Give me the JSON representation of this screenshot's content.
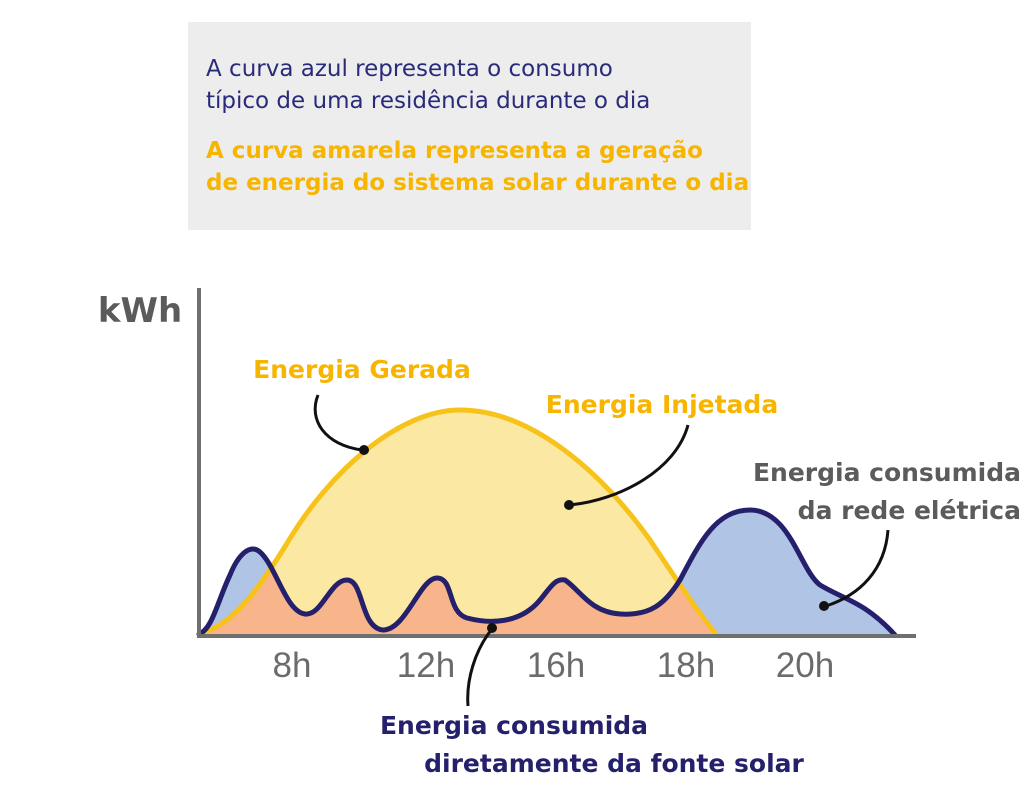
{
  "legend": {
    "blue_lines": [
      "A curva azul representa o consumo",
      "típico de uma residência durante o dia"
    ],
    "yellow_lines": [
      "A curva amarela representa a geração",
      "de energia do sistema solar durante o dia"
    ]
  },
  "chart_data": {
    "type": "area",
    "ylabel": "kWh",
    "xlabel": "",
    "x_ticks": [
      "8h",
      "12h",
      "16h",
      "18h",
      "20h"
    ],
    "series": [
      {
        "name": "Energia Gerada",
        "color": "#f7c31b",
        "fill": "#fbe9a3"
      },
      {
        "name": "Consumo",
        "color": "#25206b",
        "fill": "#b0c4e6"
      }
    ],
    "overlap_fill": "#f8b48b",
    "annotations": {
      "gerada": "Energia Gerada",
      "injetada": "Energia Injetada",
      "rede_lines": [
        "Energia consumida",
        "da rede elétrica"
      ],
      "direta_lines": [
        "Energia consumida",
        "diretamente da fonte solar"
      ]
    },
    "colors": {
      "axis": "#6f6f6f",
      "ylabel": "#5b5b5b",
      "tick": "#6b6b6b",
      "yellow_text": "#f7b500",
      "gray_text": "#5b5b5b",
      "navy_text": "#25206b",
      "pointer": "#111111"
    }
  }
}
